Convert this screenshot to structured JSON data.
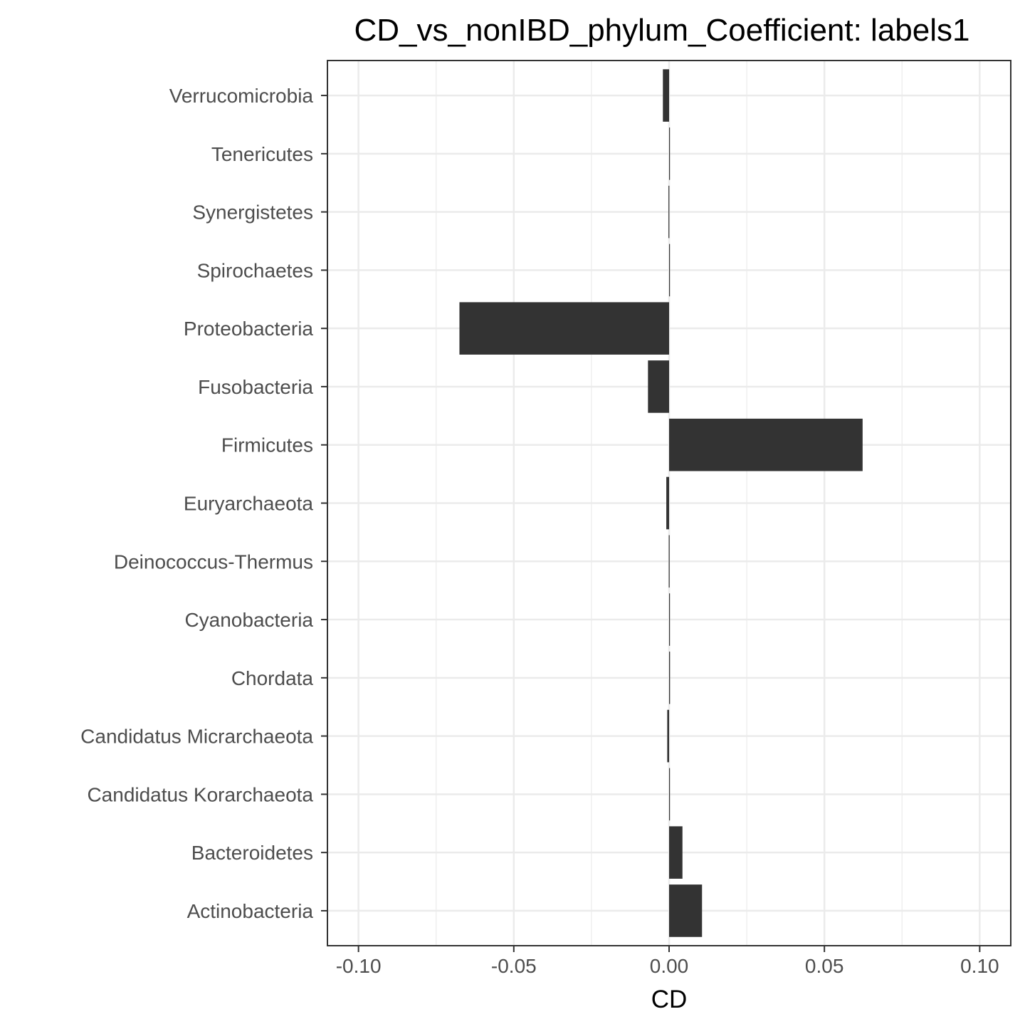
{
  "chart_data": {
    "type": "bar",
    "orientation": "horizontal",
    "title": "CD_vs_nonIBD_phylum_Coefficient: labels1",
    "xlabel": "CD",
    "ylabel": "",
    "categories": [
      "Verrucomicrobia",
      "Tenericutes",
      "Synergistetes",
      "Spirochaetes",
      "Proteobacteria",
      "Fusobacteria",
      "Firmicutes",
      "Euryarchaeota",
      "Deinococcus-Thermus",
      "Cyanobacteria",
      "Chordata",
      "Candidatus Micrarchaeota",
      "Candidatus Korarchaeota",
      "Bacteroidetes",
      "Actinobacteria"
    ],
    "values": [
      -0.002,
      0.0002,
      -0.0002,
      0.0002,
      -0.0675,
      -0.0068,
      0.0623,
      -0.0009,
      -0.0001,
      0.0001,
      0.0003,
      -0.0006,
      0.0001,
      0.0043,
      0.0106
    ],
    "xlim": [
      -0.11,
      0.11
    ],
    "xticks": [
      -0.1,
      -0.05,
      0,
      0.05,
      0.1
    ],
    "xtick_labels": [
      "-0.10",
      "-0.05",
      "0.00",
      "0.05",
      "0.10"
    ],
    "grid": true,
    "legend": "none",
    "colors": {
      "bar": "#333333",
      "grid": "#ebebeb",
      "panel_border": "#333333",
      "tick_text": "#4d4d4d",
      "title_text": "#000000"
    }
  }
}
